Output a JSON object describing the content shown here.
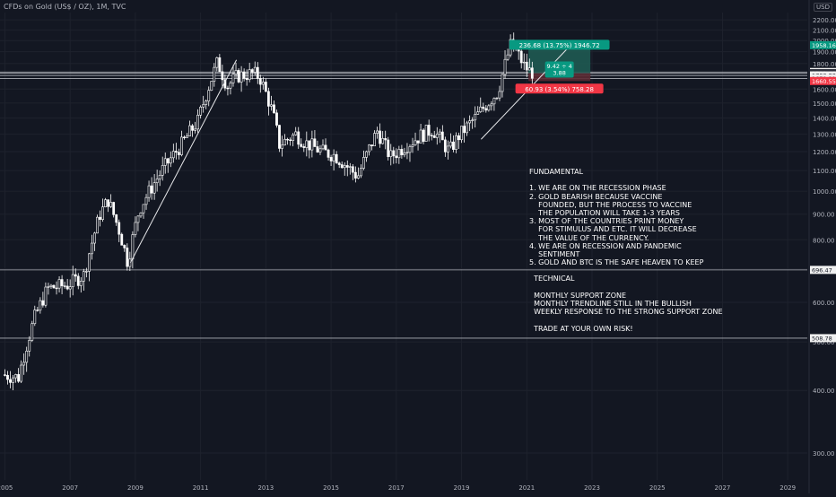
{
  "header": {
    "symbol_title": "CFDs on Gold (US$ / OZ), 1M, TVC",
    "currency": "USD"
  },
  "colors": {
    "background": "#131722",
    "grid": "#1e222d",
    "candle": "#ffffff",
    "long_zone": "#1f5a52",
    "long_label": "#089981",
    "short_label": "#f23645",
    "hline": "#c8cbd2",
    "axis_text": "#b2b5be"
  },
  "chart_data": {
    "type": "candlestick",
    "x_axis_ticks": [
      "2005",
      "2007",
      "2009",
      "2011",
      "2013",
      "2015",
      "2017",
      "2019",
      "2021",
      "2023",
      "2025",
      "2027",
      "2029"
    ],
    "y_axis_ticks": [
      "2200.00",
      "2100.00",
      "2000.00",
      "1900.00",
      "1800.00",
      "1700.00",
      "1600.00",
      "1500.00",
      "1400.00",
      "1300.00",
      "1200.00",
      "1100.00",
      "1000.00",
      "900.00",
      "800.00",
      "700.00",
      "600.00",
      "500.00",
      "400.00",
      "300.00"
    ],
    "x_range": [
      2004.85,
      2029.6
    ],
    "y_range": [
      265,
      2275
    ],
    "y_scale": "log",
    "ohlc_path": [
      [
        2005.0,
        430
      ],
      [
        2005.5,
        425
      ],
      [
        2006.0,
        560
      ],
      [
        2006.4,
        640
      ],
      [
        2007.0,
        650
      ],
      [
        2007.5,
        680
      ],
      [
        2008.0,
        900
      ],
      [
        2008.25,
        960
      ],
      [
        2008.6,
        830
      ],
      [
        2008.85,
        720
      ],
      [
        2009.2,
        920
      ],
      [
        2009.9,
        1100
      ],
      [
        2010.5,
        1240
      ],
      [
        2011.0,
        1380
      ],
      [
        2011.6,
        1810
      ],
      [
        2011.9,
        1620
      ],
      [
        2012.2,
        1700
      ],
      [
        2012.7,
        1720
      ],
      [
        2012.9,
        1690
      ],
      [
        2013.3,
        1430
      ],
      [
        2013.5,
        1240
      ],
      [
        2014.0,
        1300
      ],
      [
        2014.3,
        1250
      ],
      [
        2014.8,
        1200
      ],
      [
        2015.2,
        1180
      ],
      [
        2015.9,
        1070
      ],
      [
        2016.5,
        1320
      ],
      [
        2016.9,
        1170
      ],
      [
        2017.5,
        1250
      ],
      [
        2017.9,
        1300
      ],
      [
        2018.2,
        1330
      ],
      [
        2018.7,
        1200
      ],
      [
        2019.0,
        1290
      ],
      [
        2019.5,
        1400
      ],
      [
        2019.8,
        1480
      ],
      [
        2020.2,
        1580
      ],
      [
        2020.6,
        1970
      ],
      [
        2020.85,
        1860
      ],
      [
        2021.0,
        1780
      ],
      [
        2021.2,
        1730
      ]
    ],
    "horizontal_levels": [
      {
        "price": 1730.9,
        "label": "1730.90"
      },
      {
        "price": 1721.48,
        "label": "1721.48"
      },
      {
        "price": 1703.83,
        "label": "1703.83"
      },
      {
        "price": 1679.21,
        "label": "1679.21"
      },
      {
        "price": 696.47,
        "label": "696.47"
      },
      {
        "price": 508.78,
        "label": "508.78"
      }
    ],
    "price_labels": [
      {
        "price": 1958.16,
        "text": "1958.16",
        "style": "long"
      },
      {
        "price": 1730.9,
        "text": "1730.90",
        "style": "plain"
      },
      {
        "price": 1713,
        "text": "5d 10h",
        "style": "plain"
      },
      {
        "price": 1721.48,
        "text": "1721.48",
        "style": "dark"
      },
      {
        "price": 1703.83,
        "text": "1703.83",
        "style": "plain"
      },
      {
        "price": 1679.21,
        "text": "1679.21",
        "style": "plain"
      },
      {
        "price": 1660.55,
        "text": "1660.55",
        "style": "short"
      },
      {
        "price": 696.47,
        "text": "696.47",
        "style": "plain"
      },
      {
        "price": 508.78,
        "text": "508.78",
        "style": "plain"
      }
    ],
    "trendlines": [
      {
        "from": [
          2008.85,
          720
        ],
        "to": [
          2012.1,
          1830
        ]
      },
      {
        "from": [
          2019.6,
          1270
        ],
        "to": [
          2022.35,
          1960
        ]
      }
    ],
    "position": {
      "entry": 1721.48,
      "target": 1958.16,
      "stop": 1660.55,
      "x_start": 2021.05,
      "x_end": 2022.95,
      "target_label": "236.68 (13.75%) 1946.72",
      "stop_label": "60.93 (3.54%) 758.28",
      "rr_label_top": "9.42 ÷ 4",
      "rr_label_bottom": "3.88"
    }
  },
  "annotation": {
    "lines": [
      "FUNDAMENTAL",
      "",
      "1. WE ARE ON THE RECESSION PHASE",
      "2. GOLD BEARISH BECAUSE VACCINE",
      "    FOUNDED, BUT THE PROCESS TO VACCINE",
      "    THE POPULATION WILL TAKE 1-3 YEARS",
      "3. MOST OF THE COUNTRIES PRINT MONEY",
      "    FOR STIMULUS AND ETC. IT WILL DECREASE",
      "    THE VALUE OF THE CURRENCY.",
      "4. WE ARE ON RECESSION AND PANDEMIC",
      "    SENTIMENT",
      "5. GOLD AND BTC IS THE SAFE HEAVEN TO KEEP",
      "",
      "  TECHNICAL",
      "",
      "  MONTHLY SUPPORT ZONE",
      "  MONTHLY TRENDLINE STILL IN THE BULLISH",
      "  WEEKLY RESPONSE TO THE STRONG SUPPORT ZONE",
      "",
      "  TRADE AT YOUR OWN RISK!"
    ]
  }
}
